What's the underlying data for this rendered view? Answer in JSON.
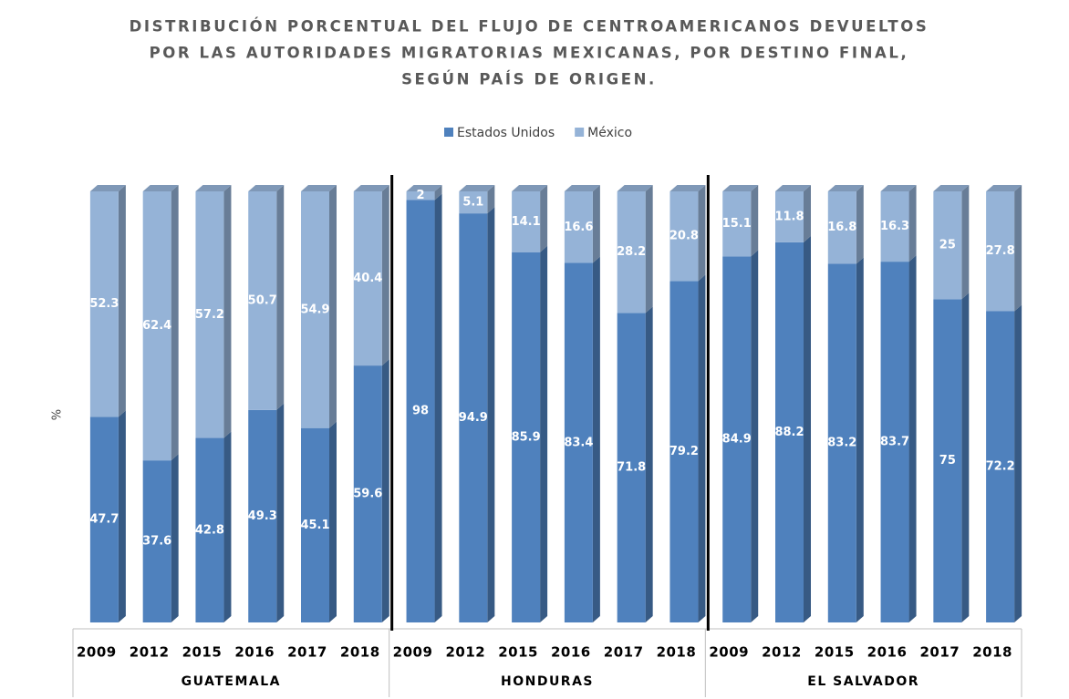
{
  "chart_data": {
    "type": "stacked_bar",
    "title": [
      "DISTRIBUCIÓN PORCENTUAL DEL FLUJO DE CENTROAMERICANOS DEVUELTOS",
      "POR LAS AUTORIDADES MIGRATORIAS MEXICANAS, POR DESTINO FINAL,",
      "SEGÚN PAÍS DE ORIGEN."
    ],
    "y_label": "%",
    "groups": [
      "GUATEMALA",
      "HONDURAS",
      "EL SALVADOR"
    ],
    "categories": [
      "2009",
      "2012",
      "2015",
      "2016",
      "2017",
      "2018",
      "2009",
      "2012",
      "2015",
      "2016",
      "2017",
      "2018",
      "2009",
      "2012",
      "2015",
      "2016",
      "2017",
      "2018"
    ],
    "series": [
      {
        "name": "Estados Unidos",
        "color": "#4f81bd",
        "values": [
          47.7,
          37.6,
          42.8,
          49.3,
          45.1,
          59.6,
          98,
          94.9,
          85.9,
          83.4,
          71.8,
          79.2,
          84.9,
          88.2,
          83.2,
          83.7,
          75,
          72.2
        ]
      },
      {
        "name": "México",
        "color": "#95b3d7",
        "values": [
          52.3,
          62.4,
          57.2,
          50.7,
          54.9,
          40.4,
          2,
          5.1,
          14.1,
          16.6,
          28.2,
          20.8,
          15.1,
          11.8,
          16.8,
          16.3,
          25,
          27.8
        ]
      }
    ],
    "ylim": [
      0,
      100
    ],
    "legend": "top"
  }
}
